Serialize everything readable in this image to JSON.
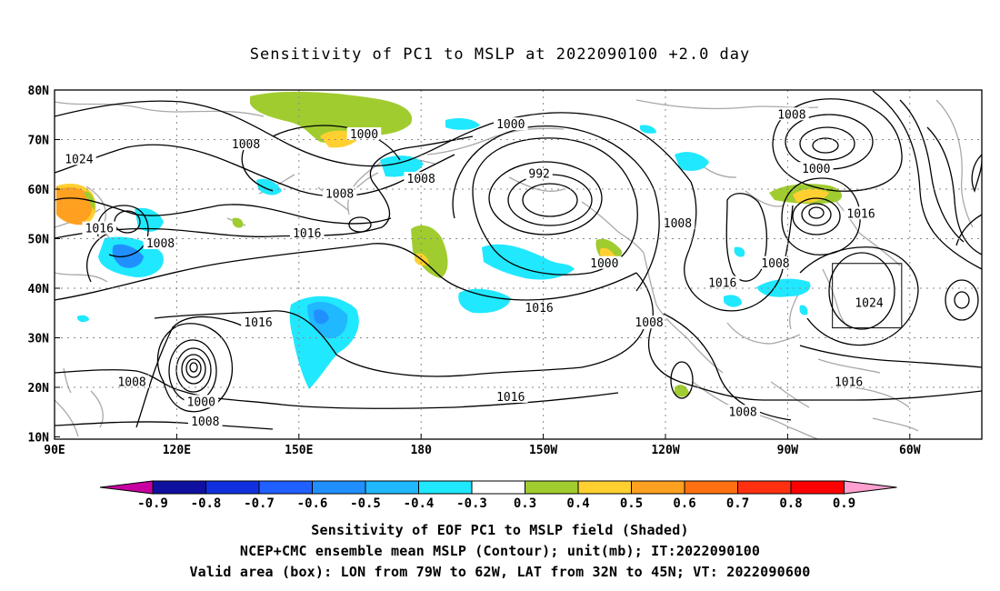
{
  "title": "Sensitivity of PC1 to MSLP at 2022090100 +2.0 day",
  "axes": {
    "lat_labels": [
      "80N",
      "70N",
      "60N",
      "50N",
      "40N",
      "30N",
      "20N",
      "10N"
    ],
    "lon_labels": [
      "90E",
      "120E",
      "150E",
      "180",
      "150W",
      "120W",
      "90W",
      "60W"
    ]
  },
  "contour_labels": [
    {
      "text": "1024",
      "lon": 96,
      "lat": 66
    },
    {
      "text": "1008",
      "lon": 137,
      "lat": 69
    },
    {
      "text": "1000",
      "lon": 166,
      "lat": 71
    },
    {
      "text": "1008",
      "lon": 180,
      "lat": 62
    },
    {
      "text": "1008",
      "lon": 160,
      "lat": 59
    },
    {
      "text": "1016",
      "lon": 101,
      "lat": 52
    },
    {
      "text": "1008",
      "lon": 116,
      "lat": 49
    },
    {
      "text": "1016",
      "lon": 152,
      "lat": 51
    },
    {
      "text": "1000",
      "lon": -158,
      "lat": 73
    },
    {
      "text": "992",
      "lon": -151,
      "lat": 63
    },
    {
      "text": "1000",
      "lon": -135,
      "lat": 45
    },
    {
      "text": "1016",
      "lon": -151,
      "lat": 36
    },
    {
      "text": "1008",
      "lon": -117,
      "lat": 53
    },
    {
      "text": "1016",
      "lon": -106,
      "lat": 41
    },
    {
      "text": "1008",
      "lon": -93,
      "lat": 45
    },
    {
      "text": "1008",
      "lon": -89,
      "lat": 75
    },
    {
      "text": "1000",
      "lon": -83,
      "lat": 64
    },
    {
      "text": "1016",
      "lon": -72,
      "lat": 55
    },
    {
      "text": "1024",
      "lon": -70,
      "lat": 37
    },
    {
      "text": "1008",
      "lon": -124,
      "lat": 33
    },
    {
      "text": "1016",
      "lon": 140,
      "lat": 33
    },
    {
      "text": "1016",
      "lon": -158,
      "lat": 18
    },
    {
      "text": "1016",
      "lon": -75,
      "lat": 21
    },
    {
      "text": "1008",
      "lon": -101,
      "lat": 15
    },
    {
      "text": "1008",
      "lon": 109,
      "lat": 21
    },
    {
      "text": "1000",
      "lon": 126,
      "lat": 17
    },
    {
      "text": "1008",
      "lon": 127,
      "lat": 13
    }
  ],
  "colorbar": {
    "labels": [
      "-0.9",
      "-0.8",
      "-0.7",
      "-0.6",
      "-0.5",
      "-0.4",
      "-0.3",
      "0.3",
      "0.4",
      "0.5",
      "0.6",
      "0.7",
      "0.8",
      "0.9"
    ],
    "colors": [
      "#1010a0",
      "#1030e0",
      "#2060ff",
      "#2090ff",
      "#20b8ff",
      "#20e8ff",
      "#ffffff",
      "#a0cc30",
      "#ffd030",
      "#ffa020",
      "#ff7010",
      "#ff3010",
      "#ff0000"
    ],
    "left_arrow_color": "#c800a0",
    "right_arrow_color": "#ffa0d0"
  },
  "validation_box": {
    "lon_min": -79,
    "lon_max": -62,
    "lat_min": 32,
    "lat_max": 45
  },
  "captions": [
    "Sensitivity of EOF PC1 to MSLP field (Shaded)",
    "NCEP+CMC ensemble mean MSLP (Contour); unit(mb); IT:2022090100",
    "Valid area (box): LON from 79W to 62W, LAT from 32N to 45N; VT: 2022090600"
  ]
}
